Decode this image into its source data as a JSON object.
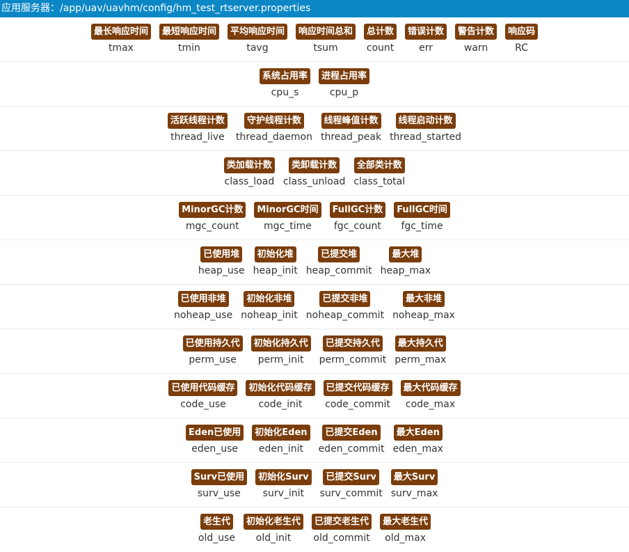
{
  "header": {
    "title": "应用服务器：/app/uav/uavhm/config/hm_test_rtserver.properties"
  },
  "rows": [
    [
      {
        "label": "最长响应时间",
        "code": "tmax"
      },
      {
        "label": "最短响应时间",
        "code": "tmin"
      },
      {
        "label": "平均响应时间",
        "code": "tavg"
      },
      {
        "label": "响应时间总和",
        "code": "tsum"
      },
      {
        "label": "总计数",
        "code": "count"
      },
      {
        "label": "错误计数",
        "code": "err"
      },
      {
        "label": "警告计数",
        "code": "warn"
      },
      {
        "label": "响应码",
        "code": "RC"
      }
    ],
    [
      {
        "label": "系统占用率",
        "code": "cpu_s"
      },
      {
        "label": "进程占用率",
        "code": "cpu_p"
      }
    ],
    [
      {
        "label": "活跃线程计数",
        "code": "thread_live"
      },
      {
        "label": "守护线程计数",
        "code": "thread_daemon"
      },
      {
        "label": "线程峰值计数",
        "code": "thread_peak"
      },
      {
        "label": "线程启动计数",
        "code": "thread_started"
      }
    ],
    [
      {
        "label": "类加载计数",
        "code": "class_load"
      },
      {
        "label": "类卸载计数",
        "code": "class_unload"
      },
      {
        "label": "全部类计数",
        "code": "class_total"
      }
    ],
    [
      {
        "label": "MinorGC计数",
        "code": "mgc_count"
      },
      {
        "label": "MinorGC时间",
        "code": "mgc_time"
      },
      {
        "label": "FullGC计数",
        "code": "fgc_count"
      },
      {
        "label": "FullGC时间",
        "code": "fgc_time"
      }
    ],
    [
      {
        "label": "已使用堆",
        "code": "heap_use"
      },
      {
        "label": "初始化堆",
        "code": "heap_init"
      },
      {
        "label": "已提交堆",
        "code": "heap_commit"
      },
      {
        "label": "最大堆",
        "code": "heap_max"
      }
    ],
    [
      {
        "label": "已使用非堆",
        "code": "noheap_use"
      },
      {
        "label": "初始化非堆",
        "code": "noheap_init"
      },
      {
        "label": "已提交非堆",
        "code": "noheap_commit"
      },
      {
        "label": "最大非堆",
        "code": "noheap_max"
      }
    ],
    [
      {
        "label": "已使用持久代",
        "code": "perm_use"
      },
      {
        "label": "初始化持久代",
        "code": "perm_init"
      },
      {
        "label": "已提交持久代",
        "code": "perm_commit"
      },
      {
        "label": "最大持久代",
        "code": "perm_max"
      }
    ],
    [
      {
        "label": "已使用代码缓存",
        "code": "code_use"
      },
      {
        "label": "初始化代码缓存",
        "code": "code_init"
      },
      {
        "label": "已提交代码缓存",
        "code": "code_commit"
      },
      {
        "label": "最大代码缓存",
        "code": "code_max"
      }
    ],
    [
      {
        "label": "Eden已使用",
        "code": "eden_use"
      },
      {
        "label": "初始化Eden",
        "code": "eden_init"
      },
      {
        "label": "已提交Eden",
        "code": "eden_commit"
      },
      {
        "label": "最大Eden",
        "code": "eden_max"
      }
    ],
    [
      {
        "label": "Surv已使用",
        "code": "surv_use"
      },
      {
        "label": "初始化Surv",
        "code": "surv_init"
      },
      {
        "label": "已提交Surv",
        "code": "surv_commit"
      },
      {
        "label": "最大Surv",
        "code": "surv_max"
      }
    ],
    [
      {
        "label": "老生代",
        "code": "old_use"
      },
      {
        "label": "初始化老生代",
        "code": "old_init"
      },
      {
        "label": "已提交老生代",
        "code": "old_commit"
      },
      {
        "label": "最大老生代",
        "code": "old_max"
      }
    ]
  ]
}
